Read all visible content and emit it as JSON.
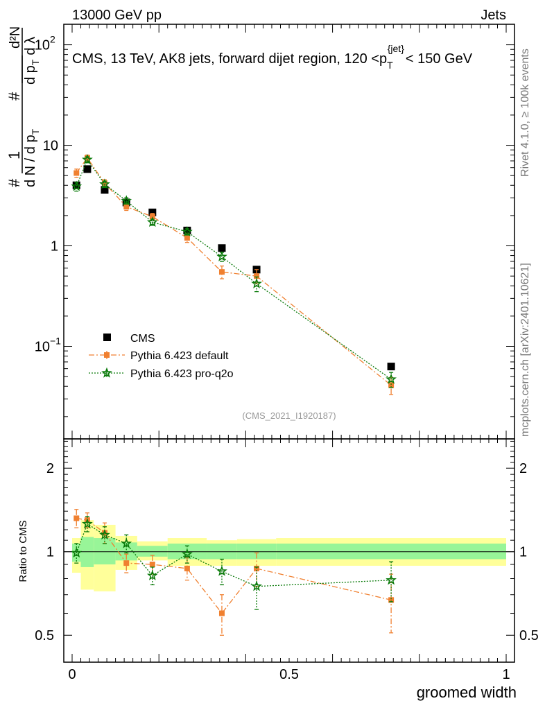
{
  "header": {
    "left": "13000 GeV pp",
    "right": "Jets",
    "title": "CMS, 13 TeV, AK8 jets, forward dijet region, 120 <p",
    "title_sup": "{jet}",
    "title_sub": "T",
    "title_tail": "< 150 GeV"
  },
  "side": {
    "rivet": "Rivet 4.1.0, ≥ 100k events",
    "mcplots": "mcplots.cern.ch [arXiv:2401.10621]"
  },
  "reference": "(CMS_2021_I1920187)",
  "colors": {
    "data": "#000000",
    "default": "#f08030",
    "proq2o": "#0a7a0a",
    "band_inner": "#98f598",
    "band_outer": "#ffff9a"
  },
  "chart_data": [
    {
      "type": "scatter",
      "name": "main",
      "yscale": "log",
      "ylabel_parts": {
        "hash": "#",
        "one": "1",
        "dN": "d N / d p",
        "T": "T",
        "d2N": "d²N",
        "dp": "d p",
        "dl": "d λ"
      },
      "xlim": [
        0,
        1
      ],
      "ylim": [
        0.012,
        160
      ],
      "yticks": [
        {
          "value": 0.1,
          "label": "10",
          "exp": "−1"
        },
        {
          "value": 1,
          "label": "1",
          "exp": ""
        },
        {
          "value": 10,
          "label": "10",
          "exp": ""
        },
        {
          "value": 100,
          "label": "10",
          "exp": "2"
        }
      ],
      "series": [
        {
          "name": "CMS",
          "style": "data",
          "x": [
            0.01,
            0.035,
            0.075,
            0.125,
            0.185,
            0.265,
            0.345,
            0.425,
            0.735
          ],
          "y": [
            4.0,
            5.8,
            3.6,
            2.7,
            2.15,
            1.42,
            0.95,
            0.58,
            0.063
          ]
        },
        {
          "name": "Pythia 6.423 default",
          "style": "default",
          "x": [
            0.01,
            0.035,
            0.075,
            0.125,
            0.185,
            0.265,
            0.345,
            0.425,
            0.735
          ],
          "y": [
            5.3,
            7.5,
            4.2,
            2.45,
            1.95,
            1.2,
            0.55,
            0.5,
            0.041
          ],
          "err": [
            0.5,
            0.5,
            0.35,
            0.2,
            0.15,
            0.12,
            0.08,
            0.08,
            0.008
          ]
        },
        {
          "name": "Pythia 6.423 pro-q2o",
          "style": "proq2o",
          "x": [
            0.01,
            0.035,
            0.075,
            0.125,
            0.185,
            0.265,
            0.345,
            0.425,
            0.735
          ],
          "y": [
            3.9,
            7.2,
            4.1,
            2.8,
            1.72,
            1.38,
            0.78,
            0.42,
            0.047
          ],
          "err": [
            0.4,
            0.5,
            0.3,
            0.2,
            0.12,
            0.1,
            0.08,
            0.07,
            0.008
          ]
        }
      ]
    },
    {
      "type": "scatter",
      "name": "ratio",
      "yscale": "log",
      "ylabel": "Ratio to CMS",
      "xlabel": "groomed width",
      "xlim": [
        0,
        1
      ],
      "ylim": [
        0.4,
        2.55
      ],
      "yticks": [
        {
          "value": 0.5,
          "label": "0.5"
        },
        {
          "value": 1,
          "label": "1"
        },
        {
          "value": 2,
          "label": "2"
        }
      ],
      "xticks": [
        {
          "value": 0,
          "label": "0"
        },
        {
          "value": 0.5,
          "label": "0.5"
        },
        {
          "value": 1,
          "label": "1"
        }
      ],
      "bands": [
        {
          "x0": 0.0,
          "x1": 0.02,
          "inner": [
            0.92,
            1.07
          ],
          "outer": [
            0.84,
            1.12
          ]
        },
        {
          "x0": 0.02,
          "x1": 0.05,
          "inner": [
            0.88,
            1.13
          ],
          "outer": [
            0.73,
            1.3
          ]
        },
        {
          "x0": 0.05,
          "x1": 0.1,
          "inner": [
            0.9,
            1.12
          ],
          "outer": [
            0.72,
            1.25
          ]
        },
        {
          "x0": 0.1,
          "x1": 0.15,
          "inner": [
            0.93,
            1.08
          ],
          "outer": [
            0.86,
            1.14
          ]
        },
        {
          "x0": 0.15,
          "x1": 0.22,
          "inner": [
            0.96,
            1.05
          ],
          "outer": [
            0.93,
            1.09
          ]
        },
        {
          "x0": 0.22,
          "x1": 0.31,
          "inner": [
            0.94,
            1.07
          ],
          "outer": [
            0.89,
            1.12
          ]
        },
        {
          "x0": 0.31,
          "x1": 0.38,
          "inner": [
            0.94,
            1.07
          ],
          "outer": [
            0.89,
            1.1
          ]
        },
        {
          "x0": 0.38,
          "x1": 0.47,
          "inner": [
            0.94,
            1.07
          ],
          "outer": [
            0.89,
            1.11
          ]
        },
        {
          "x0": 0.47,
          "x1": 1.0,
          "inner": [
            0.94,
            1.07
          ],
          "outer": [
            0.89,
            1.12
          ]
        }
      ],
      "series": [
        {
          "name": "Pythia 6.423 default",
          "style": "default",
          "x": [
            0.01,
            0.035,
            0.075,
            0.125,
            0.185,
            0.265,
            0.345,
            0.425,
            0.735
          ],
          "y": [
            1.32,
            1.3,
            1.17,
            0.91,
            0.9,
            0.87,
            0.6,
            0.87,
            0.67
          ],
          "err": [
            0.1,
            0.08,
            0.1,
            0.07,
            0.07,
            0.08,
            0.1,
            0.12,
            0.16
          ]
        },
        {
          "name": "Pythia 6.423 pro-q2o",
          "style": "proq2o",
          "x": [
            0.01,
            0.035,
            0.075,
            0.125,
            0.185,
            0.265,
            0.345,
            0.425,
            0.735
          ],
          "y": [
            0.99,
            1.26,
            1.15,
            1.07,
            0.82,
            0.98,
            0.85,
            0.75,
            0.79
          ],
          "err": [
            0.08,
            0.08,
            0.08,
            0.08,
            0.06,
            0.07,
            0.09,
            0.13,
            0.13
          ]
        }
      ]
    }
  ]
}
